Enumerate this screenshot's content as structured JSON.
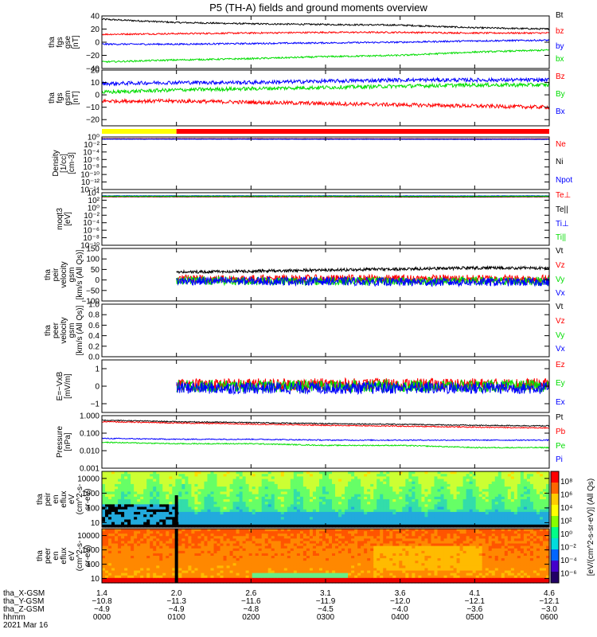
{
  "title": "P5 (TH-A) fields and ground moments overview",
  "colors": {
    "black": "#000000",
    "red": "#ff0000",
    "green": "#00dd00",
    "blue": "#0000ff",
    "yellow": "#ffff00",
    "orange": "#ff9900"
  },
  "chart_data": [
    {
      "type": "line",
      "panel": "fgs-gse",
      "ylabel_lines": [
        "tha",
        "fgs",
        "gse",
        "[nT]"
      ],
      "ylim": [
        -40,
        40
      ],
      "yticks": [
        "40",
        "20",
        "0",
        "−20",
        "−40"
      ],
      "yticks_values": [
        40,
        20,
        0,
        -20,
        -40
      ],
      "series": [
        {
          "name": "Bt",
          "color": "black",
          "x": [
            0,
            60,
            120,
            180,
            240,
            300,
            360
          ],
          "values": [
            35,
            30,
            28,
            27,
            26,
            22,
            20
          ]
        },
        {
          "name": "bz",
          "color": "red",
          "x": [
            0,
            60,
            120,
            180,
            240,
            300,
            360
          ],
          "values": [
            12,
            13,
            14,
            15,
            15,
            14,
            14
          ]
        },
        {
          "name": "by",
          "color": "blue",
          "x": [
            0,
            60,
            120,
            180,
            240,
            300,
            360
          ],
          "values": [
            -3,
            -3,
            -2,
            -1,
            0,
            2,
            3
          ]
        },
        {
          "name": "bx",
          "color": "green",
          "x": [
            0,
            60,
            120,
            180,
            240,
            300,
            360
          ],
          "values": [
            -30,
            -27,
            -25,
            -22,
            -20,
            -15,
            -12
          ]
        }
      ]
    },
    {
      "type": "line",
      "panel": "fgs-gsm",
      "ylabel_lines": [
        "tha",
        "fgs",
        "gsm",
        "[nT]"
      ],
      "ylim": [
        -25,
        20
      ],
      "yticks": [
        "20",
        "10",
        "0",
        "−10",
        "−20"
      ],
      "yticks_values": [
        20,
        10,
        0,
        -10,
        -20
      ],
      "series": [
        {
          "name": "Bz",
          "color": "red",
          "x": [
            0,
            60,
            120,
            180,
            240,
            300,
            360
          ],
          "values": [
            -5,
            -5,
            -6,
            -7,
            -8,
            -9,
            -10
          ]
        },
        {
          "name": "By",
          "color": "green",
          "x": [
            0,
            60,
            120,
            180,
            240,
            300,
            360
          ],
          "values": [
            2,
            4,
            5,
            6,
            7,
            8,
            8
          ]
        },
        {
          "name": "Bx",
          "color": "blue",
          "x": [
            0,
            60,
            120,
            180,
            240,
            300,
            360
          ],
          "values": [
            9,
            10,
            10,
            11,
            12,
            12,
            12
          ]
        }
      ]
    },
    {
      "type": "line",
      "panel": "density",
      "ylabel_lines": [
        "Density",
        "[1/cc]",
        "[cm-3]"
      ],
      "scale": "log",
      "ylim": [
        1e-14,
        1
      ],
      "yticks": [
        "10⁰",
        "10⁻²",
        "10⁻⁴",
        "10⁻⁶",
        "10⁻⁸",
        "10⁻¹⁰",
        "10⁻¹²",
        "10⁻¹⁴"
      ],
      "yticks_values": [
        1,
        0.01,
        0.0001,
        1e-06,
        1e-08,
        1e-10,
        1e-12,
        1e-14
      ],
      "series": [
        {
          "name": "Ne",
          "color": "red",
          "x": [
            0,
            60,
            120,
            180,
            240,
            300,
            360
          ],
          "values": [
            0.35,
            0.35,
            0.35,
            0.34,
            0.33,
            0.32,
            0.32
          ]
        },
        {
          "name": "Ni",
          "color": "black",
          "x": [
            0,
            60,
            120,
            180,
            240,
            300,
            360
          ],
          "values": [
            0.3,
            0.3,
            0.3,
            0.3,
            0.29,
            0.28,
            0.28
          ]
        },
        {
          "name": "Npot",
          "color": "blue",
          "x": [
            0,
            60,
            120,
            180,
            240,
            300,
            360
          ],
          "values": [
            0.25,
            0.25,
            0.25,
            0.24,
            0.24,
            0.23,
            0.23
          ]
        }
      ]
    },
    {
      "type": "line",
      "panel": "temperature",
      "ylabel_lines": [
        "moqt3",
        "[eV]"
      ],
      "scale": "log",
      "ylim": [
        1e-10,
        10000
      ],
      "yticks": [
        "10⁴",
        "10²",
        "10⁰",
        "10⁻²",
        "10⁻⁴",
        "10⁻⁶",
        "10⁻⁸",
        "10⁻¹⁰"
      ],
      "yticks_values": [
        10000.0,
        100.0,
        1,
        0.01,
        0.0001,
        1e-06,
        1e-08,
        1e-10
      ],
      "series": [
        {
          "name": "Te⊥",
          "color": "red",
          "x": [
            0,
            60,
            120,
            180,
            240,
            300,
            360
          ],
          "values": [
            800,
            800,
            800,
            800,
            700,
            700,
            800
          ]
        },
        {
          "name": "Te||",
          "color": "black",
          "x": [
            0,
            60,
            120,
            180,
            240,
            300,
            360
          ],
          "values": [
            900,
            900,
            900,
            900,
            800,
            800,
            900
          ]
        },
        {
          "name": "Ti⊥",
          "color": "blue",
          "x": [
            0,
            60,
            120,
            180,
            240,
            300,
            360
          ],
          "values": [
            1500,
            1500,
            1500,
            1500,
            1400,
            1400,
            1500
          ]
        },
        {
          "name": "Ti||",
          "color": "green",
          "x": [
            0,
            60,
            120,
            180,
            240,
            300,
            360
          ],
          "values": [
            1200,
            1200,
            1200,
            1200,
            1100,
            1100,
            1200
          ]
        }
      ]
    },
    {
      "type": "line",
      "panel": "peir-velocity",
      "ylabel_lines": [
        "tha",
        "peir",
        "velocity",
        "gsm",
        "[km/s (All Qs)]"
      ],
      "ylim": [
        -100,
        150
      ],
      "yticks": [
        "150",
        "100",
        "50",
        "0",
        "−50",
        "−100"
      ],
      "yticks_values": [
        150,
        100,
        50,
        0,
        -50,
        -100
      ],
      "data_start_x": 60,
      "series": [
        {
          "name": "Vt",
          "color": "black",
          "x": [
            60,
            120,
            180,
            240,
            300,
            360
          ],
          "values": [
            30,
            35,
            40,
            45,
            50,
            50
          ]
        },
        {
          "name": "Vz",
          "color": "red",
          "x": [
            60,
            120,
            180,
            240,
            300,
            360
          ],
          "values": [
            5,
            5,
            5,
            5,
            5,
            5
          ]
        },
        {
          "name": "Vy",
          "color": "green",
          "x": [
            60,
            120,
            180,
            240,
            300,
            360
          ],
          "values": [
            0,
            -5,
            -5,
            -5,
            -5,
            -5
          ]
        },
        {
          "name": "Vx",
          "color": "blue",
          "x": [
            60,
            120,
            180,
            240,
            300,
            360
          ],
          "values": [
            -5,
            -5,
            -5,
            -10,
            -10,
            -10
          ]
        }
      ]
    },
    {
      "type": "line",
      "panel": "peer-velocity",
      "ylabel_lines": [
        "tha",
        "peer",
        "velocity",
        "gsm",
        "[km/s (All Qs)]"
      ],
      "ylim": [
        0,
        1
      ],
      "yticks": [
        "1.0",
        "0.8",
        "0.6",
        "0.4",
        "0.2",
        "0.0"
      ],
      "yticks_values": [
        1,
        0.8,
        0.6,
        0.4,
        0.2,
        0
      ],
      "series": [
        {
          "name": "Vt",
          "color": "black",
          "x": [],
          "values": []
        },
        {
          "name": "Vz",
          "color": "red",
          "x": [],
          "values": []
        },
        {
          "name": "Vy",
          "color": "green",
          "x": [],
          "values": []
        },
        {
          "name": "Vx",
          "color": "blue",
          "x": [],
          "values": []
        }
      ]
    },
    {
      "type": "line",
      "panel": "efield",
      "ylabel_lines": [
        "E=−VxB",
        "[mV/m]"
      ],
      "ylim": [
        -1.5,
        1.5
      ],
      "yticks": [
        "1",
        "0",
        "−1"
      ],
      "yticks_values": [
        1,
        0,
        -1
      ],
      "data_start_x": 60,
      "series": [
        {
          "name": "Ez",
          "color": "red",
          "x": [
            60,
            120,
            180,
            240,
            300,
            360
          ],
          "values": [
            0.1,
            0.1,
            0.1,
            0.1,
            0.1,
            0.1
          ]
        },
        {
          "name": "Ey",
          "color": "green",
          "x": [
            60,
            120,
            180,
            240,
            300,
            360
          ],
          "values": [
            0,
            0,
            0,
            0,
            0,
            0
          ]
        },
        {
          "name": "Ex",
          "color": "blue",
          "x": [
            60,
            120,
            180,
            240,
            300,
            360
          ],
          "values": [
            -0.1,
            -0.1,
            -0.1,
            -0.1,
            -0.1,
            -0.1
          ]
        }
      ]
    },
    {
      "type": "line",
      "panel": "pressure",
      "ylabel_lines": [
        "Pressure",
        "[nPa]"
      ],
      "scale": "log",
      "ylim": [
        0.001,
        1
      ],
      "yticks": [
        "1.000",
        "0.100",
        "0.010",
        "0.001"
      ],
      "yticks_values": [
        1,
        0.1,
        0.01,
        0.001
      ],
      "series": [
        {
          "name": "Pt",
          "color": "black",
          "x": [
            0,
            60,
            120,
            180,
            240,
            300,
            360
          ],
          "values": [
            0.55,
            0.45,
            0.4,
            0.35,
            0.32,
            0.28,
            0.26
          ]
        },
        {
          "name": "Pb",
          "color": "red",
          "x": [
            0,
            60,
            120,
            180,
            240,
            300,
            360
          ],
          "values": [
            0.45,
            0.38,
            0.33,
            0.28,
            0.25,
            0.22,
            0.2
          ]
        },
        {
          "name": "Pe",
          "color": "green",
          "x": [
            0,
            60,
            120,
            180,
            240,
            300,
            360
          ],
          "values": [
            0.03,
            0.025,
            0.025,
            0.02,
            0.02,
            0.015,
            0.015
          ]
        },
        {
          "name": "Pi",
          "color": "blue",
          "x": [
            0,
            60,
            120,
            180,
            240,
            300,
            360
          ],
          "values": [
            0.05,
            0.045,
            0.045,
            0.04,
            0.04,
            0.04,
            0.04
          ]
        }
      ]
    },
    {
      "type": "heatmap",
      "panel": "peir-eflux",
      "ylabel_lines": [
        "tha",
        "peir",
        "en",
        "eflux",
        "eV",
        "(cm^2-s-",
        "sr-eV)"
      ],
      "scale": "log",
      "ylim": [
        5,
        30000
      ],
      "yticks": [
        "10000",
        "1000",
        "100",
        "10"
      ],
      "yticks_values": [
        10000,
        1000,
        100,
        10
      ]
    },
    {
      "type": "heatmap",
      "panel": "peer-eflux",
      "ylabel_lines": [
        "tha",
        "peer",
        "en",
        "eflux",
        "eV",
        "(cm^2-s-",
        "sr-eV)"
      ],
      "scale": "log",
      "ylim": [
        5,
        30000
      ],
      "yticks": [
        "10000",
        "1000",
        "100",
        "10"
      ],
      "yticks_values": [
        10000,
        1000,
        100,
        10
      ]
    }
  ],
  "colorbar": {
    "ticks": [
      "10⁸",
      "10⁶",
      "10⁴",
      "10²",
      "10⁰",
      "10⁻²",
      "10⁻⁴",
      "10⁻⁶"
    ],
    "label": "[eV/(cm^2-s-sr-eV)] (All Qs)"
  },
  "xaxis": {
    "tick_x": [
      0,
      60,
      120,
      180,
      240,
      300,
      360
    ],
    "labels": [
      "tha_X-GSM",
      "tha_Y-GSM",
      "tha_Z-GSM",
      "hhmm",
      "2021 Mar 16"
    ],
    "rows": [
      [
        "1.4",
        "2.0",
        "2.6",
        "3.1",
        "3.6",
        "4.1",
        "4.6"
      ],
      [
        "−10.8",
        "−11.3",
        "−11.6",
        "−11.9",
        "−12.0",
        "−12.1",
        "−12.1"
      ],
      [
        "−4.9",
        "−4.9",
        "−4.8",
        "−4.5",
        "−4.0",
        "−3.6",
        "−3.0"
      ],
      [
        "0000",
        "0100",
        "0200",
        "0300",
        "0400",
        "0500",
        "0600"
      ]
    ]
  }
}
